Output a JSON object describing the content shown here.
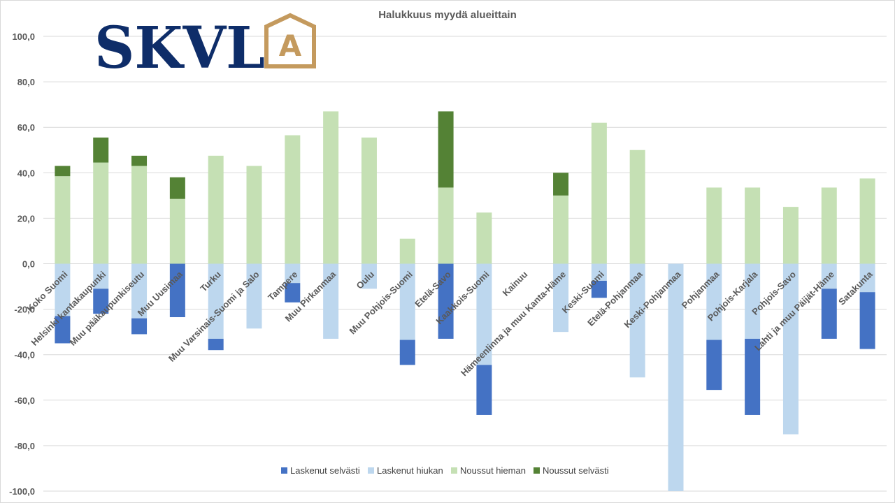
{
  "chart_data": {
    "type": "bar",
    "stacked": true,
    "title": "Halukkuus myydä alueittain",
    "ylim": [
      -100,
      100
    ],
    "y_ticks": [
      "100,0",
      "80,0",
      "60,0",
      "40,0",
      "20,0",
      "0,0",
      "-20,0",
      "-40,0",
      "-60,0",
      "-80,0",
      "-100,0"
    ],
    "y_tick_values": [
      100,
      80,
      60,
      40,
      20,
      0,
      -20,
      -40,
      -60,
      -80,
      -100
    ],
    "grid": true,
    "legend_position": "bottom",
    "categories": [
      "Koko Suomi",
      "Helsinki kantakaupunki",
      "Muu pääkaupunkiseutu",
      "Muu Uusimaa",
      "Turku",
      "Muu Varsinais-Suomi ja Salo",
      "Tampere",
      "Muu Pirkanmaa",
      "Oulu",
      "Muu Pohjois-Suomi",
      "Etelä-Savo",
      "Kaakkois-Suomi",
      "Kainuu",
      "Hämeenlinna ja muu Kanta-Häme",
      "Keski-Suomi",
      "Etelä-Pohjanmaa",
      "Keski-Pohjanmaa",
      "Pohjanmaa",
      "Pohjois-Karjala",
      "Pohjois-Savo",
      "Lahti ja muu Päijät-Häme",
      "Satakunta"
    ],
    "series": [
      {
        "name": "Laskenut selvästi",
        "color": "#4472c4",
        "values": [
          -12,
          -11,
          -7,
          -23.5,
          -5,
          0,
          -8.5,
          0,
          0,
          -11,
          -33,
          -22,
          0,
          0,
          -7.5,
          0,
          0,
          -22,
          -33.5,
          0,
          -22,
          -25
        ]
      },
      {
        "name": "Laskenut hiukan",
        "color": "#bdd7ee",
        "values": [
          -23,
          -11,
          -24,
          0,
          -33,
          -28.5,
          -8.5,
          -33,
          -11,
          -33.5,
          0,
          -44.5,
          0,
          -30,
          -7.5,
          -50,
          -100,
          -33.5,
          -33,
          -75,
          -11,
          -12.5
        ]
      },
      {
        "name": "Noussut hieman",
        "color": "#c5e0b4",
        "values": [
          38.5,
          44.5,
          43,
          28.5,
          47.5,
          43,
          56.5,
          67,
          55.5,
          11,
          33.5,
          22.5,
          0,
          30,
          62,
          50,
          0,
          33.5,
          33.5,
          25,
          33.5,
          37.5
        ]
      },
      {
        "name": "Noussut selvästi",
        "color": "#548235",
        "values": [
          4.5,
          11,
          4.5,
          9.5,
          0,
          0,
          0,
          0,
          0,
          0,
          33.5,
          0,
          0,
          10,
          0,
          0,
          0,
          0,
          0,
          0,
          0,
          0
        ]
      }
    ]
  },
  "logo": {
    "text": "SKVL",
    "emblem_letter": "A",
    "text_color": "#0e2d69",
    "emblem_color": "#c49a5e"
  }
}
